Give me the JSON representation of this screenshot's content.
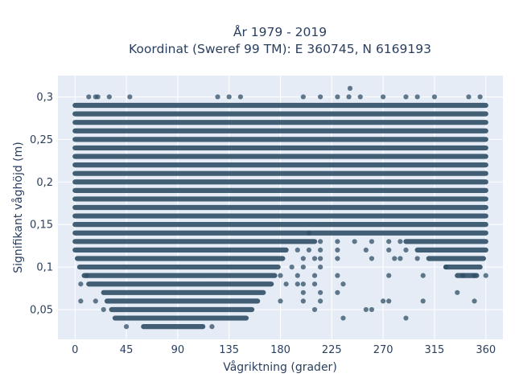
{
  "chart_data": {
    "type": "scatter",
    "title_lines": [
      "År 1979 - 2019",
      "Koordinat (Sweref 99 TM): E 360745, N 6169193"
    ],
    "xlabel": "Vågriktning (grader)",
    "ylabel": "Signifikant våghöjd (m)",
    "xlim": [
      -15,
      375
    ],
    "ylim": [
      0.015,
      0.325
    ],
    "x_ticks": [
      0,
      45,
      90,
      135,
      180,
      225,
      270,
      315,
      360
    ],
    "x_tick_labels": [
      "0",
      "45",
      "90",
      "135",
      "180",
      "225",
      "270",
      "315",
      "360"
    ],
    "y_ticks": [
      0.05,
      0.1,
      0.15,
      0.2,
      0.25,
      0.3
    ],
    "y_tick_labels": [
      "0,05",
      "0,1",
      "0,15",
      "0,2",
      "0,25",
      "0,3"
    ],
    "grid": true,
    "marker_color": "#2f4f66",
    "background_color": "#e5ecf6",
    "bands": [
      {
        "y": 0.29,
        "x_start": 0,
        "x_end": 360
      },
      {
        "y": 0.28,
        "x_start": 0,
        "x_end": 360
      },
      {
        "y": 0.27,
        "x_start": 0,
        "x_end": 360
      },
      {
        "y": 0.26,
        "x_start": 0,
        "x_end": 360
      },
      {
        "y": 0.25,
        "x_start": 0,
        "x_end": 360
      },
      {
        "y": 0.24,
        "x_start": 0,
        "x_end": 360
      },
      {
        "y": 0.23,
        "x_start": 0,
        "x_end": 360
      },
      {
        "y": 0.22,
        "x_start": 0,
        "x_end": 360
      },
      {
        "y": 0.21,
        "x_start": 0,
        "x_end": 360
      },
      {
        "y": 0.2,
        "x_start": 0,
        "x_end": 360
      },
      {
        "y": 0.19,
        "x_start": 0,
        "x_end": 360
      },
      {
        "y": 0.18,
        "x_start": 0,
        "x_end": 360
      },
      {
        "y": 0.17,
        "x_start": 0,
        "x_end": 360
      },
      {
        "y": 0.16,
        "x_start": 0,
        "x_end": 360
      },
      {
        "y": 0.15,
        "x_start": 0,
        "x_end": 360
      },
      {
        "y": 0.14,
        "x_start": 0,
        "x_end": 360
      },
      {
        "y": 0.13,
        "x_start": 0,
        "x_end": 210
      },
      {
        "y": 0.13,
        "x_start": 290,
        "x_end": 360
      },
      {
        "y": 0.12,
        "x_start": 0,
        "x_end": 185
      },
      {
        "y": 0.12,
        "x_start": 300,
        "x_end": 360
      },
      {
        "y": 0.11,
        "x_start": 2,
        "x_end": 182
      },
      {
        "y": 0.11,
        "x_start": 310,
        "x_end": 358
      },
      {
        "y": 0.1,
        "x_start": 4,
        "x_end": 178
      },
      {
        "y": 0.1,
        "x_start": 325,
        "x_end": 355
      },
      {
        "y": 0.09,
        "x_start": 8,
        "x_end": 175
      },
      {
        "y": 0.09,
        "x_start": 335,
        "x_end": 352
      },
      {
        "y": 0.08,
        "x_start": 12,
        "x_end": 172
      },
      {
        "y": 0.07,
        "x_start": 25,
        "x_end": 165
      },
      {
        "y": 0.06,
        "x_start": 28,
        "x_end": 160
      },
      {
        "y": 0.05,
        "x_start": 32,
        "x_end": 155
      },
      {
        "y": 0.04,
        "x_start": 35,
        "x_end": 150
      },
      {
        "y": 0.03,
        "x_start": 60,
        "x_end": 112
      }
    ],
    "scattered_points": [
      [
        12,
        0.3
      ],
      [
        18,
        0.3
      ],
      [
        20,
        0.3
      ],
      [
        30,
        0.3
      ],
      [
        48,
        0.3
      ],
      [
        125,
        0.3
      ],
      [
        135,
        0.3
      ],
      [
        145,
        0.3
      ],
      [
        200,
        0.3
      ],
      [
        215,
        0.3
      ],
      [
        230,
        0.3
      ],
      [
        240,
        0.3
      ],
      [
        250,
        0.3
      ],
      [
        270,
        0.3
      ],
      [
        290,
        0.3
      ],
      [
        300,
        0.3
      ],
      [
        315,
        0.3
      ],
      [
        345,
        0.3
      ],
      [
        355,
        0.3
      ],
      [
        241,
        0.31
      ],
      [
        205,
        0.14
      ],
      [
        215,
        0.13
      ],
      [
        230,
        0.13
      ],
      [
        245,
        0.13
      ],
      [
        260,
        0.13
      ],
      [
        275,
        0.13
      ],
      [
        285,
        0.13
      ],
      [
        195,
        0.12
      ],
      [
        205,
        0.12
      ],
      [
        215,
        0.12
      ],
      [
        230,
        0.12
      ],
      [
        255,
        0.12
      ],
      [
        275,
        0.12
      ],
      [
        290,
        0.12
      ],
      [
        200,
        0.11
      ],
      [
        210,
        0.11
      ],
      [
        215,
        0.11
      ],
      [
        230,
        0.11
      ],
      [
        260,
        0.11
      ],
      [
        280,
        0.11
      ],
      [
        285,
        0.11
      ],
      [
        300,
        0.11
      ],
      [
        190,
        0.1
      ],
      [
        200,
        0.1
      ],
      [
        215,
        0.1
      ],
      [
        325,
        0.1
      ],
      [
        180,
        0.09
      ],
      [
        195,
        0.09
      ],
      [
        210,
        0.09
      ],
      [
        230,
        0.09
      ],
      [
        275,
        0.09
      ],
      [
        305,
        0.09
      ],
      [
        340,
        0.09
      ],
      [
        350,
        0.09
      ],
      [
        360,
        0.09
      ],
      [
        185,
        0.08
      ],
      [
        195,
        0.08
      ],
      [
        200,
        0.08
      ],
      [
        210,
        0.08
      ],
      [
        235,
        0.08
      ],
      [
        200,
        0.07
      ],
      [
        215,
        0.07
      ],
      [
        230,
        0.07
      ],
      [
        335,
        0.07
      ],
      [
        180,
        0.06
      ],
      [
        200,
        0.06
      ],
      [
        215,
        0.06
      ],
      [
        270,
        0.06
      ],
      [
        275,
        0.06
      ],
      [
        305,
        0.06
      ],
      [
        350,
        0.06
      ],
      [
        210,
        0.05
      ],
      [
        255,
        0.05
      ],
      [
        260,
        0.05
      ],
      [
        235,
        0.04
      ],
      [
        290,
        0.04
      ],
      [
        5,
        0.06
      ],
      [
        5,
        0.08
      ],
      [
        10,
        0.09
      ],
      [
        18,
        0.06
      ],
      [
        25,
        0.05
      ],
      [
        45,
        0.03
      ],
      [
        120,
        0.03
      ]
    ]
  }
}
